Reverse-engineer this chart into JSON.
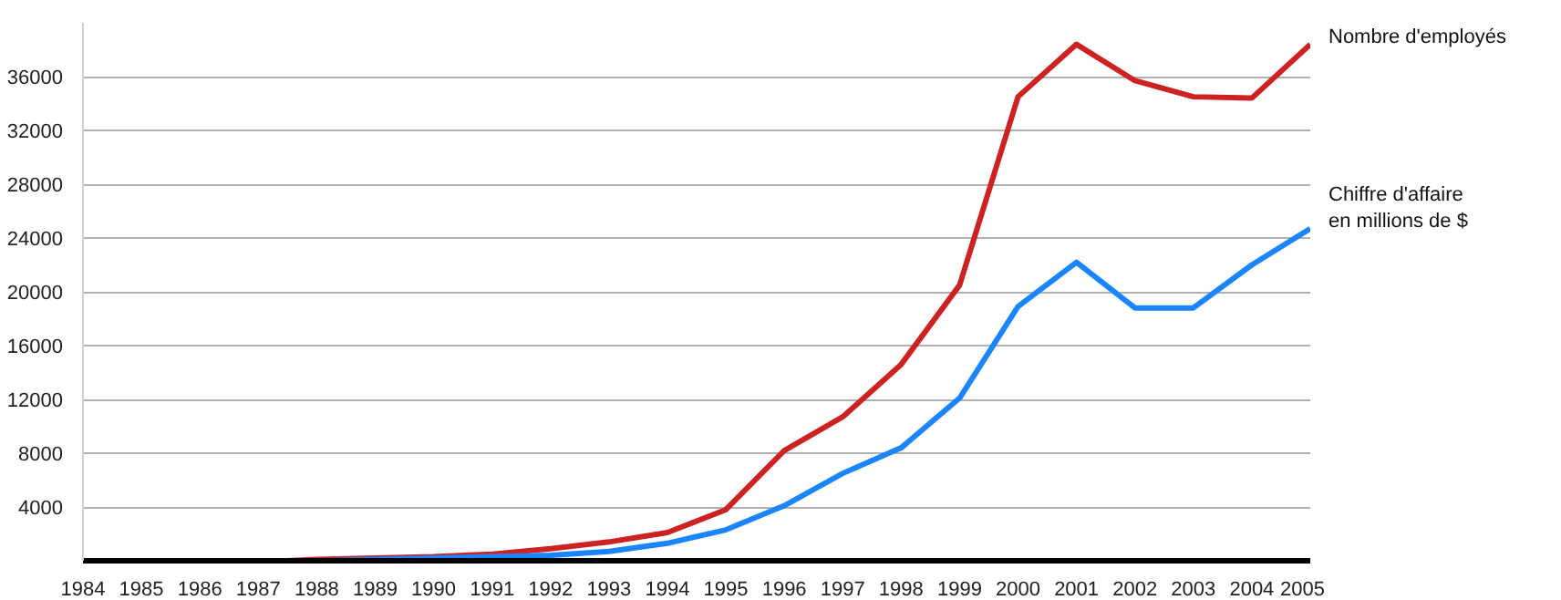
{
  "chart_data": {
    "type": "line",
    "xlim": [
      1984,
      2005
    ],
    "ylim": [
      0,
      40000
    ],
    "xticks": [
      1984,
      1985,
      1986,
      1987,
      1988,
      1989,
      1990,
      1991,
      1992,
      1993,
      1994,
      1995,
      1996,
      1997,
      1998,
      1999,
      2000,
      2001,
      2002,
      2003,
      2004,
      2005
    ],
    "yticks": [
      {
        "value": 0,
        "label": null
      },
      4000,
      8000,
      12000,
      16000,
      20000,
      24000,
      28000,
      32000,
      36000
    ],
    "grid": "y",
    "line_style": "solid",
    "series": [
      {
        "name": "Nombre d'employés",
        "color": "#cc2222",
        "x": [
          1987.5,
          1988,
          1989,
          1990,
          1991,
          1992,
          1993,
          1994,
          1995,
          1996,
          1997,
          1998,
          1999,
          2000,
          2001,
          2002,
          2003,
          2004,
          2005
        ],
        "values": [
          0,
          100,
          200,
          300,
          500,
          900,
          1400,
          2100,
          3800,
          8200,
          10700,
          14600,
          20500,
          34500,
          38400,
          35700,
          34500,
          34400,
          38400
        ]
      },
      {
        "name": "Chiffre d'affaire en millions de $",
        "color": "#1a85ff",
        "x": [
          1988,
          1989,
          1990,
          1991,
          1992,
          1993,
          1994,
          1995,
          1996,
          1997,
          1998,
          1999,
          2000,
          2001,
          2002,
          2003,
          2004,
          2005
        ],
        "values": [
          0,
          100,
          200,
          300,
          400,
          700,
          1300,
          2300,
          4100,
          6500,
          8400,
          12100,
          18900,
          22200,
          18800,
          18800,
          22000,
          24700
        ]
      }
    ]
  }
}
